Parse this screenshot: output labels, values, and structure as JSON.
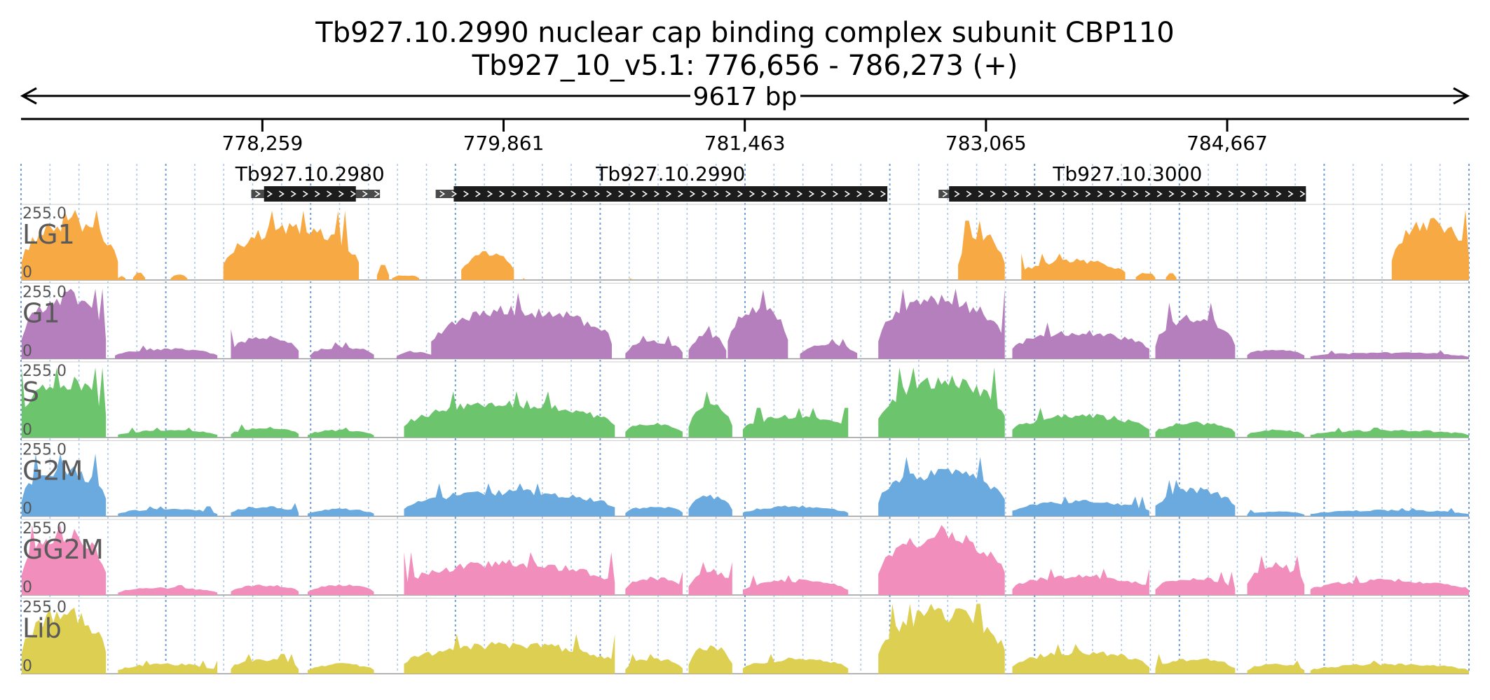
{
  "header": {
    "title": "Tb927.10.2990  nuclear cap binding complex subunit CBP110",
    "subtitle": "Tb927_10_v5.1: 776,656 - 786,273 (+)",
    "length_label": "9617 bp"
  },
  "region": {
    "chrom": "Tb927_10_v5.1",
    "start": 776656,
    "end": 786273,
    "strand": "+"
  },
  "ruler": {
    "ticks": [
      {
        "pos": 778259,
        "label": "778,259"
      },
      {
        "pos": 779861,
        "label": "779,861"
      },
      {
        "pos": 781463,
        "label": "781,463"
      },
      {
        "pos": 783065,
        "label": "783,065"
      },
      {
        "pos": 784667,
        "label": "784,667"
      }
    ]
  },
  "genes": [
    {
      "name": "Tb927.10.2980",
      "start": 778260,
      "end": 778175,
      "utr_start": 778185,
      "utr_end": 779040,
      "cds_start": 778270,
      "cds_end": 778880
    },
    {
      "name": "Tb927.10.2990",
      "start": 779410,
      "end": 782410,
      "utr_start": 779410,
      "utr_end": 782410,
      "cds_start": 779530,
      "cds_end": 782410
    },
    {
      "name": "Tb927.10.3000",
      "start": 782750,
      "end": 785190,
      "utr_start": 782750,
      "utr_end": 785190,
      "cds_start": 782820,
      "cds_end": 785190
    }
  ],
  "tracks": [
    {
      "name": "LG1",
      "color": "#f7a944",
      "ymax_label": "255.0",
      "ymin_label": "0",
      "max_value": 255,
      "profile": "lg1"
    },
    {
      "name": "G1",
      "color": "#b57fbe",
      "ymax_label": "255.0",
      "ymin_label": "0",
      "max_value": 255,
      "profile": "g1"
    },
    {
      "name": "S",
      "color": "#6cc46c",
      "ymax_label": "255.0",
      "ymin_label": "0",
      "max_value": 255,
      "profile": "s"
    },
    {
      "name": "G2M",
      "color": "#6aaadf",
      "ymax_label": "255.0",
      "ymin_label": "0",
      "max_value": 255,
      "profile": "g2m"
    },
    {
      "name": "GG2M",
      "color": "#f28ebc",
      "ymax_label": "255.0",
      "ymin_label": "0",
      "max_value": 255,
      "profile": "gg2m"
    },
    {
      "name": "Lib",
      "color": "#dccf52",
      "ymax_label": "255.0",
      "ymin_label": "0",
      "max_value": 255,
      "profile": "lib"
    }
  ],
  "coverage_segments": {
    "lg1": [
      [
        776660,
        777300,
        230
      ],
      [
        777300,
        777350,
        20
      ],
      [
        777400,
        777480,
        30
      ],
      [
        777650,
        777760,
        20
      ],
      [
        778000,
        778900,
        210
      ],
      [
        779020,
        779100,
        60
      ],
      [
        779120,
        779300,
        20
      ],
      [
        779580,
        779930,
        110
      ],
      [
        779990,
        780000,
        5
      ],
      [
        780700,
        780710,
        5
      ],
      [
        782880,
        783190,
        180
      ],
      [
        783300,
        783990,
        80
      ],
      [
        784060,
        784190,
        30
      ],
      [
        784260,
        784330,
        30
      ],
      [
        785760,
        786273,
        230
      ]
    ],
    "g1": [
      [
        776660,
        777220,
        250
      ],
      [
        777280,
        777960,
        40
      ],
      [
        778050,
        778500,
        90
      ],
      [
        778580,
        779000,
        50
      ],
      [
        779150,
        779400,
        30
      ],
      [
        779380,
        780580,
        200
      ],
      [
        780670,
        781050,
        70
      ],
      [
        781090,
        781340,
        100
      ],
      [
        781350,
        781750,
        210
      ],
      [
        781830,
        782210,
        60
      ],
      [
        782350,
        783190,
        240
      ],
      [
        783240,
        784150,
        110
      ],
      [
        784190,
        784720,
        170
      ],
      [
        784800,
        785180,
        40
      ],
      [
        785220,
        786273,
        25
      ]
    ],
    "s": [
      [
        776660,
        777220,
        230
      ],
      [
        777300,
        777960,
        30
      ],
      [
        778050,
        778500,
        40
      ],
      [
        778560,
        779000,
        30
      ],
      [
        779200,
        780600,
        140
      ],
      [
        780670,
        781050,
        60
      ],
      [
        781090,
        781380,
        140
      ],
      [
        781450,
        782150,
        90
      ],
      [
        782350,
        783190,
        230
      ],
      [
        783240,
        784150,
        90
      ],
      [
        784190,
        784720,
        60
      ],
      [
        784800,
        785180,
        30
      ],
      [
        785220,
        786273,
        30
      ]
    ],
    "g2m": [
      [
        776660,
        777220,
        190
      ],
      [
        777300,
        777960,
        30
      ],
      [
        778050,
        778500,
        40
      ],
      [
        778560,
        779000,
        30
      ],
      [
        779200,
        780600,
        100
      ],
      [
        780670,
        781050,
        40
      ],
      [
        781090,
        781380,
        80
      ],
      [
        781450,
        782150,
        40
      ],
      [
        782350,
        783190,
        180
      ],
      [
        783240,
        784150,
        60
      ],
      [
        784190,
        784720,
        110
      ],
      [
        784800,
        785180,
        20
      ],
      [
        785220,
        786273,
        25
      ]
    ],
    "gg2m": [
      [
        776660,
        777220,
        250
      ],
      [
        777300,
        777960,
        30
      ],
      [
        778050,
        778500,
        40
      ],
      [
        778560,
        779000,
        40
      ],
      [
        779200,
        780600,
        130
      ],
      [
        780670,
        781050,
        70
      ],
      [
        781090,
        781380,
        100
      ],
      [
        781450,
        782150,
        60
      ],
      [
        782350,
        783190,
        240
      ],
      [
        783240,
        784150,
        80
      ],
      [
        784190,
        784720,
        70
      ],
      [
        784800,
        785180,
        120
      ],
      [
        785220,
        786273,
        60
      ]
    ],
    "lib": [
      [
        776660,
        777220,
        250
      ],
      [
        777300,
        777960,
        40
      ],
      [
        778050,
        778500,
        60
      ],
      [
        778560,
        779000,
        40
      ],
      [
        779200,
        780600,
        120
      ],
      [
        780670,
        781050,
        60
      ],
      [
        781090,
        781380,
        110
      ],
      [
        781450,
        782150,
        60
      ],
      [
        782350,
        783190,
        250
      ],
      [
        783240,
        784150,
        90
      ],
      [
        784190,
        784720,
        60
      ],
      [
        784800,
        785180,
        40
      ],
      [
        785220,
        786273,
        40
      ]
    ]
  }
}
